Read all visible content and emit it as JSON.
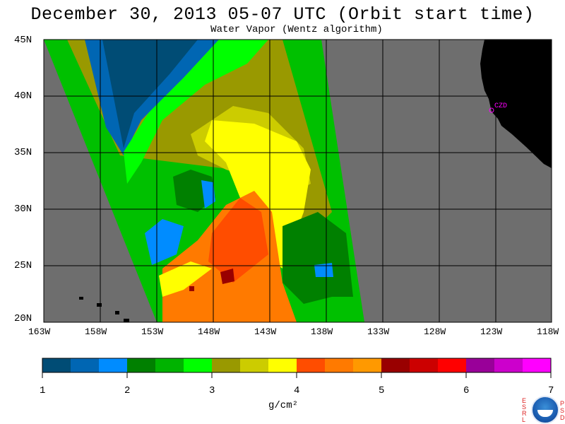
{
  "header": {
    "title": "December 30, 2013  05-07 UTC  (Orbit start time)",
    "subtitle": "Water Vapor (Wentz algorithm)"
  },
  "map": {
    "lat_labels": [
      "45N",
      "40N",
      "35N",
      "30N",
      "25N",
      "20N"
    ],
    "lon_labels": [
      "163W",
      "158W",
      "153W",
      "148W",
      "143W",
      "138W",
      "133W",
      "128W",
      "123W",
      "118W"
    ],
    "lat_range": [
      20,
      45
    ],
    "lon_range": [
      -163,
      -118
    ],
    "city_label": "CZD",
    "colors": {
      "background": "#6e6e6e",
      "land": "#000000",
      "grid": "#000000",
      "city": "#ff00ff"
    }
  },
  "colorbar": {
    "tick_labels": [
      "1",
      "2",
      "3",
      "4",
      "5",
      "6",
      "7"
    ],
    "units": "g/cm²",
    "colors": [
      "#004c75",
      "#0066b3",
      "#008cff",
      "#008000",
      "#00b300",
      "#00ff00",
      "#999900",
      "#cccc00",
      "#ffff00",
      "#ff4d00",
      "#ff7a00",
      "#ff9900",
      "#990000",
      "#cc0000",
      "#ff0000",
      "#990099",
      "#cc00cc",
      "#ff00ff"
    ]
  },
  "logos": {
    "left_letters": [
      "E",
      "S",
      "R",
      "L"
    ],
    "right_letters": [
      "P",
      "S",
      "D"
    ],
    "noaa_text": "NOAA"
  }
}
